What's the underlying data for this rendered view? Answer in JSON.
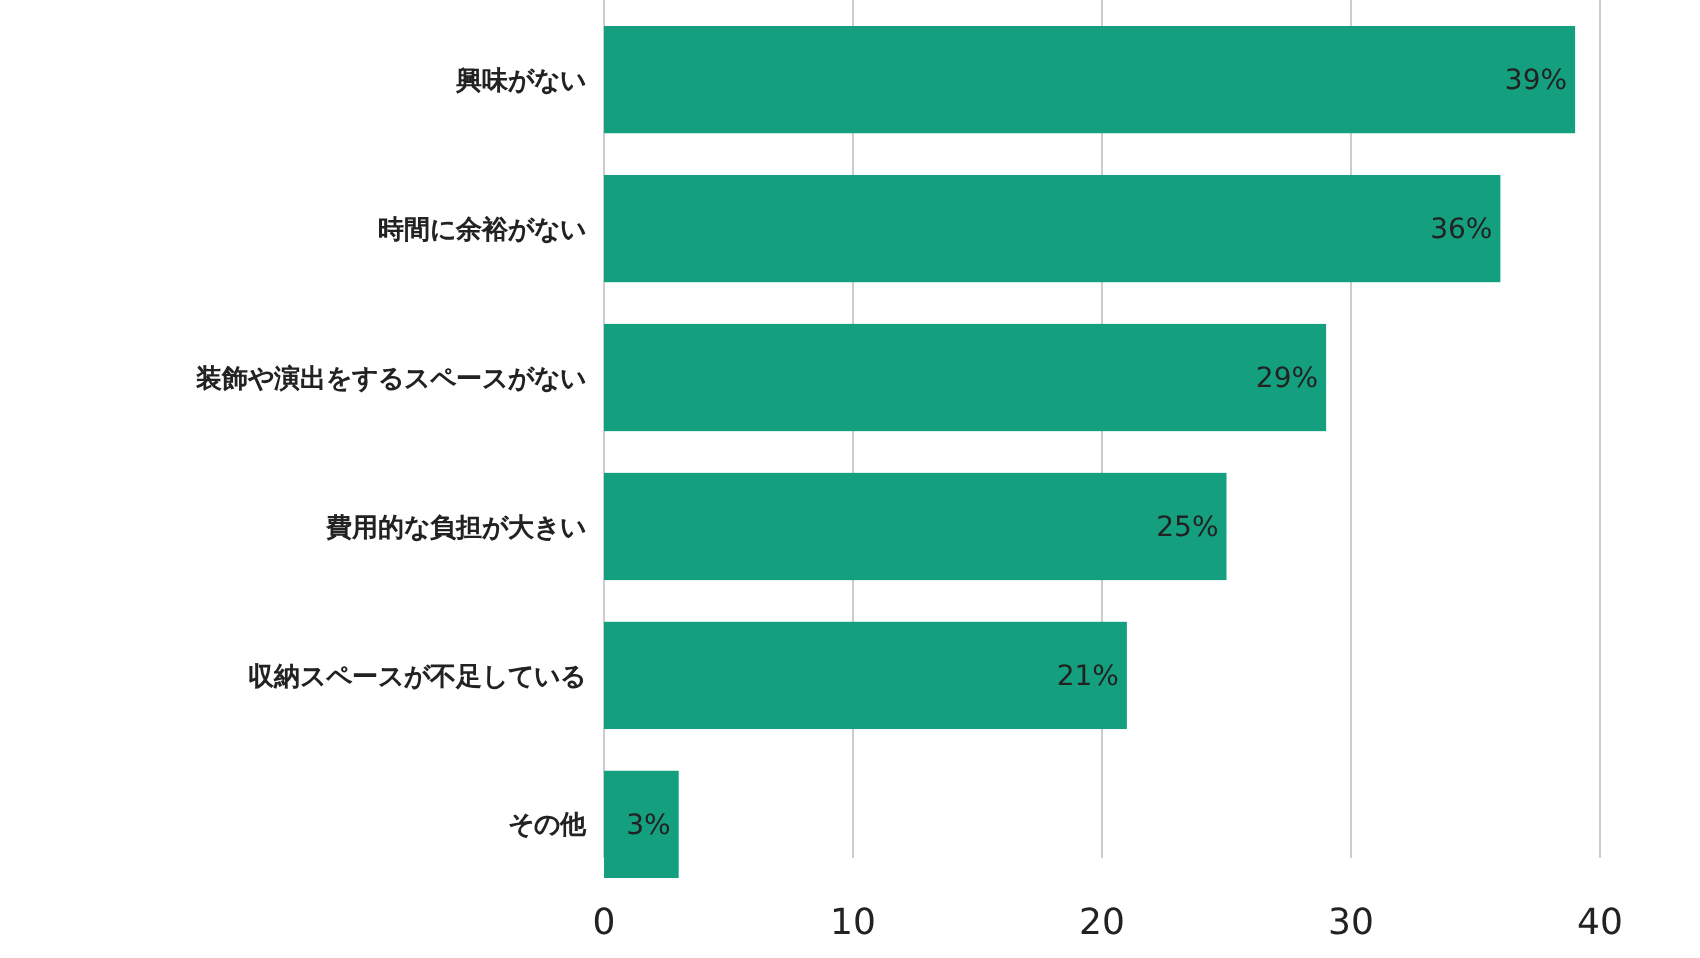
{
  "chart_data": {
    "type": "bar",
    "orientation": "horizontal",
    "categories": [
      "興味がない",
      "時間に余裕がない",
      "装飾や演出をするスペースがない",
      "費用的な負担が大きい",
      "収納スペースが不足している",
      "その他"
    ],
    "values": [
      39,
      36,
      29,
      25,
      21,
      3
    ],
    "value_labels": [
      "39%",
      "36%",
      "29%",
      "25%",
      "21%",
      "3%"
    ],
    "color": "#14a07f",
    "xlim": [
      0,
      40
    ],
    "xticks": [
      0,
      10,
      20,
      30,
      40
    ],
    "grid": "x"
  }
}
